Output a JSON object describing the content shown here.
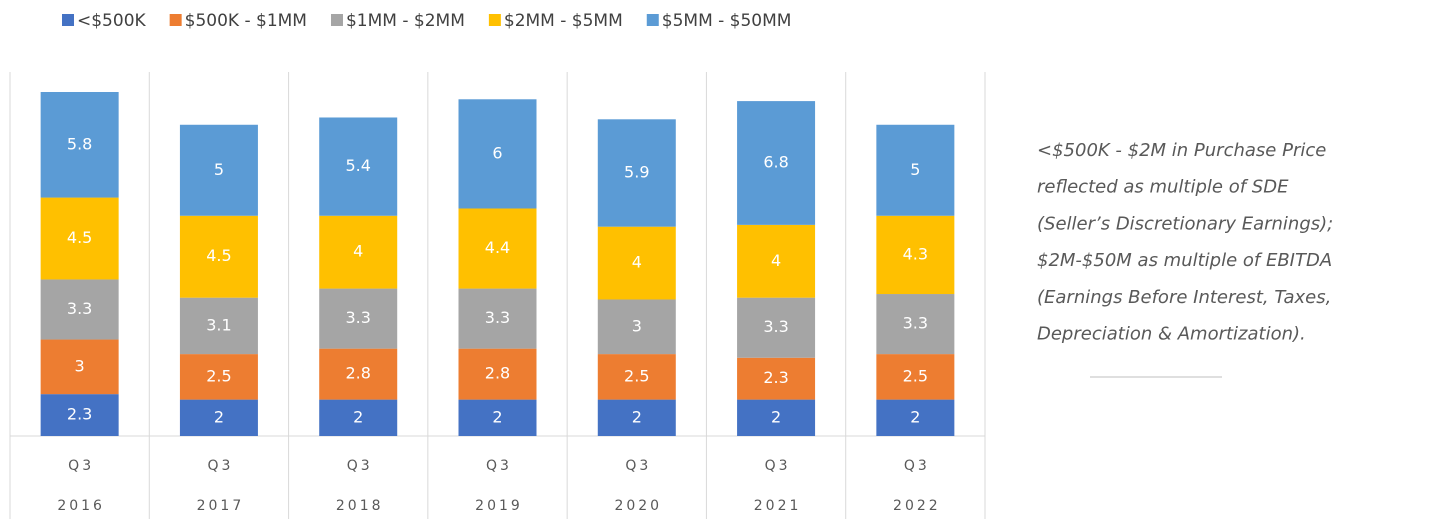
{
  "chart_data": {
    "type": "stacked_bar",
    "categories": [
      [
        "Q3",
        "2016"
      ],
      [
        "Q3",
        "2017"
      ],
      [
        "Q3",
        "2018"
      ],
      [
        "Q3",
        "2019"
      ],
      [
        "Q3",
        "2020"
      ],
      [
        "Q3",
        "2021"
      ],
      [
        "Q3",
        "2022"
      ]
    ],
    "series": [
      {
        "name": "<$500K",
        "color": "#4472c4",
        "values": [
          2.3,
          2,
          2,
          2,
          2,
          2,
          2
        ]
      },
      {
        "name": "$500K - $1MM",
        "color": "#ed7d31",
        "values": [
          3,
          2.5,
          2.8,
          2.8,
          2.5,
          2.3,
          2.5
        ]
      },
      {
        "name": "$1MM - $2MM",
        "color": "#a5a5a5",
        "values": [
          3.3,
          3.1,
          3.3,
          3.3,
          3,
          3.3,
          3.3
        ]
      },
      {
        "name": "$2MM - $5MM",
        "color": "#ffc000",
        "values": [
          4.5,
          4.5,
          4,
          4.4,
          4,
          4,
          4.3
        ]
      },
      {
        "name": "$5MM - $50MM",
        "color": "#5b9bd5",
        "values": [
          5.8,
          5,
          5.4,
          6,
          5.9,
          6.8,
          5
        ]
      }
    ],
    "legend": "top",
    "annotation": [
      "<$500K - $2M in Purchase Price",
      "reflected as multiple of SDE",
      "(Seller’s Discretionary Earnings);",
      "$2M-$50M as multiple of EBITDA",
      "(Earnings Before Interest, Taxes,",
      "Depreciation & Amortization)."
    ]
  }
}
